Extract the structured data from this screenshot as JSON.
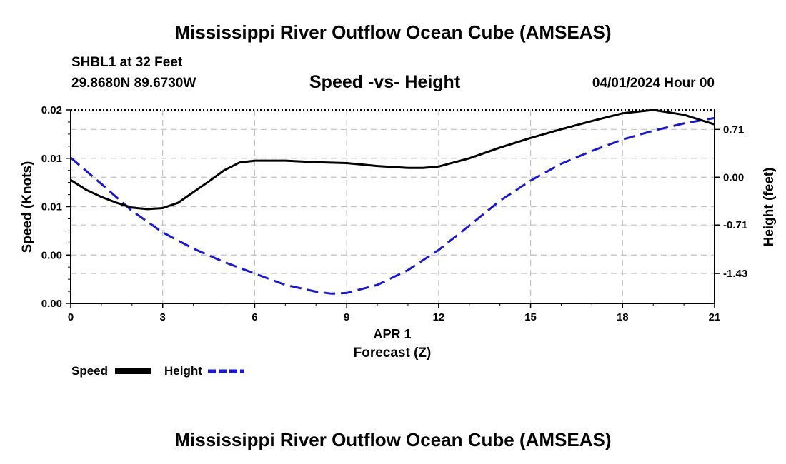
{
  "header": {
    "title": "Mississippi River Outflow Ocean Cube (AMSEAS)",
    "station": "SHBL1 at 32 Feet",
    "coords": "29.8680N  89.6730W",
    "plot_title": "Speed -vs- Height",
    "datetime": "04/01/2024 Hour 00"
  },
  "legend": {
    "speed_label": "Speed",
    "height_label": "Height"
  },
  "footer": {
    "title": "Mississippi River Outflow Ocean Cube (AMSEAS)"
  },
  "colors": {
    "speed": "#000000",
    "height": "#1a1acc",
    "grid": "#c0c0c0"
  },
  "chart_data": {
    "type": "line",
    "title": "Speed -vs- Height",
    "xlabel_date": "APR 1",
    "xlabel": "Forecast (Z)",
    "ylabel": "Speed (Knots)",
    "ylabel_right": "Height (feet)",
    "xlim": [
      0,
      21
    ],
    "x_ticks": [
      0,
      3,
      6,
      9,
      12,
      15,
      18,
      21
    ],
    "ylim": [
      0,
      4
    ],
    "y_ticks": [
      0,
      1,
      2,
      3,
      4
    ],
    "y_tick_labels": [
      "0.00",
      "0.00",
      "0.01",
      "0.01",
      "0.02"
    ],
    "y2lim": [
      -1.875,
      1.0
    ],
    "y2_ticks": [
      0.71,
      0.0,
      -0.71,
      -1.43
    ],
    "y2_tick_labels": [
      "0.71",
      "0.00",
      "-0.71",
      "-1.43"
    ],
    "series": [
      {
        "name": "Speed",
        "axis": "left",
        "x": [
          0,
          0.5,
          1,
          1.5,
          2,
          2.5,
          3,
          3.5,
          4,
          4.5,
          5,
          5.5,
          6,
          7,
          8,
          9,
          10,
          11,
          11.5,
          12,
          13,
          14,
          15,
          16,
          17,
          18,
          19,
          20,
          21
        ],
        "values": [
          2.55,
          2.35,
          2.2,
          2.08,
          1.98,
          1.95,
          1.97,
          2.08,
          2.3,
          2.52,
          2.75,
          2.91,
          2.95,
          2.95,
          2.92,
          2.9,
          2.84,
          2.8,
          2.8,
          2.83,
          3.0,
          3.22,
          3.42,
          3.6,
          3.77,
          3.93,
          4.0,
          3.9,
          3.7
        ]
      },
      {
        "name": "Height",
        "axis": "right",
        "x": [
          0,
          1,
          2,
          3,
          4,
          5,
          6,
          7,
          8,
          8.5,
          9,
          10,
          11,
          12,
          13,
          14,
          15,
          16,
          17,
          18,
          19,
          20,
          21
        ],
        "values": [
          0.29,
          -0.1,
          -0.5,
          -0.82,
          -1.06,
          -1.26,
          -1.43,
          -1.6,
          -1.7,
          -1.73,
          -1.72,
          -1.6,
          -1.38,
          -1.08,
          -0.72,
          -0.35,
          -0.05,
          0.2,
          0.39,
          0.56,
          0.69,
          0.8,
          0.88
        ]
      }
    ]
  }
}
